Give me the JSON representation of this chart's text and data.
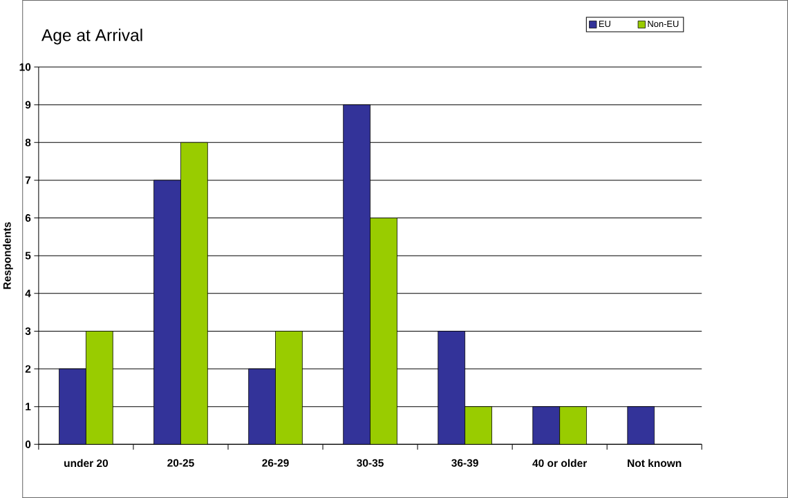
{
  "chart_data": {
    "type": "bar",
    "title": "Age at Arrival",
    "ylabel": "Respondents",
    "categories": [
      "under 20",
      "20-25",
      "26-29",
      "30-35",
      "36-39",
      "40 or older",
      "Not known"
    ],
    "series": [
      {
        "name": "EU",
        "color": "#333399",
        "values": [
          2,
          7,
          2,
          9,
          3,
          1,
          1
        ]
      },
      {
        "name": "Non-EU",
        "color": "#99cc00",
        "values": [
          3,
          8,
          3,
          6,
          1,
          1,
          null
        ]
      }
    ],
    "ylim": [
      0,
      10
    ],
    "yticks": [
      0,
      1,
      2,
      3,
      4,
      5,
      6,
      7,
      8,
      9,
      10
    ],
    "grid": "y",
    "legend": "top right"
  }
}
